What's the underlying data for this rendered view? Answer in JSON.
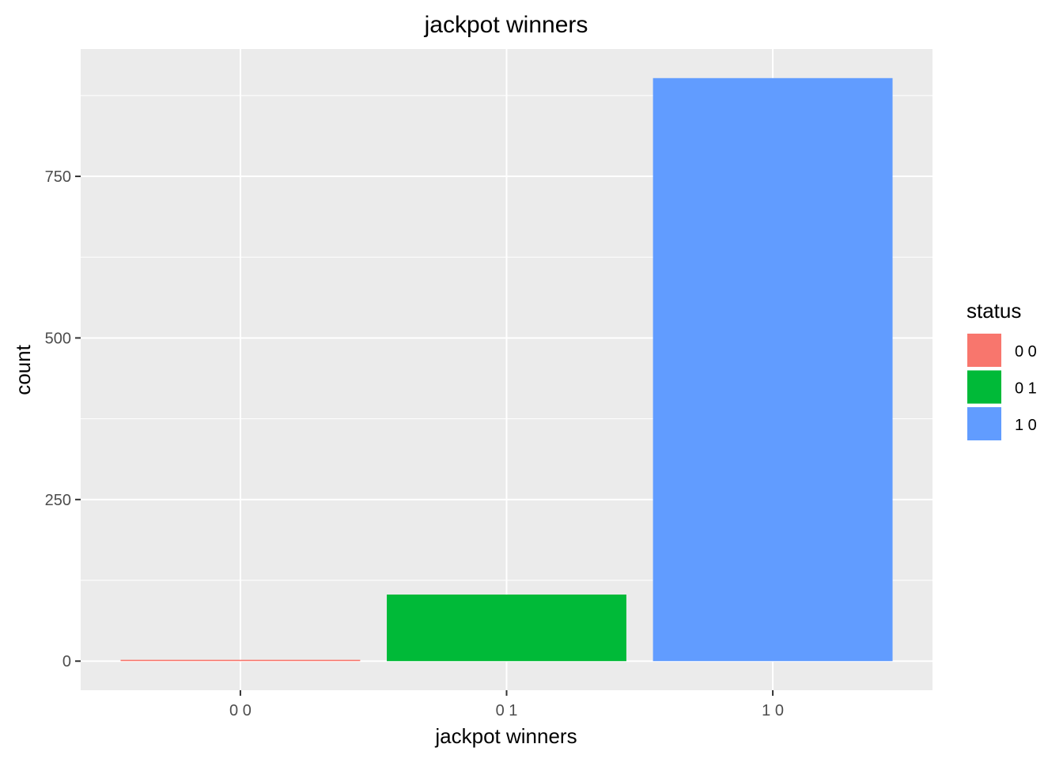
{
  "chart_data": {
    "type": "bar",
    "title": "jackpot winners",
    "xlabel": "jackpot winners",
    "ylabel": "count",
    "categories": [
      "0 0",
      "0 1",
      "1 0"
    ],
    "values": [
      2,
      103,
      902
    ],
    "colors": [
      "#F8766D",
      "#00BA38",
      "#619CFF"
    ],
    "ylim": [
      -45,
      947
    ],
    "yticks": [
      0,
      250,
      500,
      750
    ],
    "yticklabels": [
      "0",
      "250",
      "500",
      "750"
    ],
    "grid": true,
    "panel_background": "#EBEBEB",
    "legend": {
      "title": "status",
      "position": "right",
      "entries": [
        "0 0",
        "0 1",
        "1 0"
      ]
    }
  }
}
